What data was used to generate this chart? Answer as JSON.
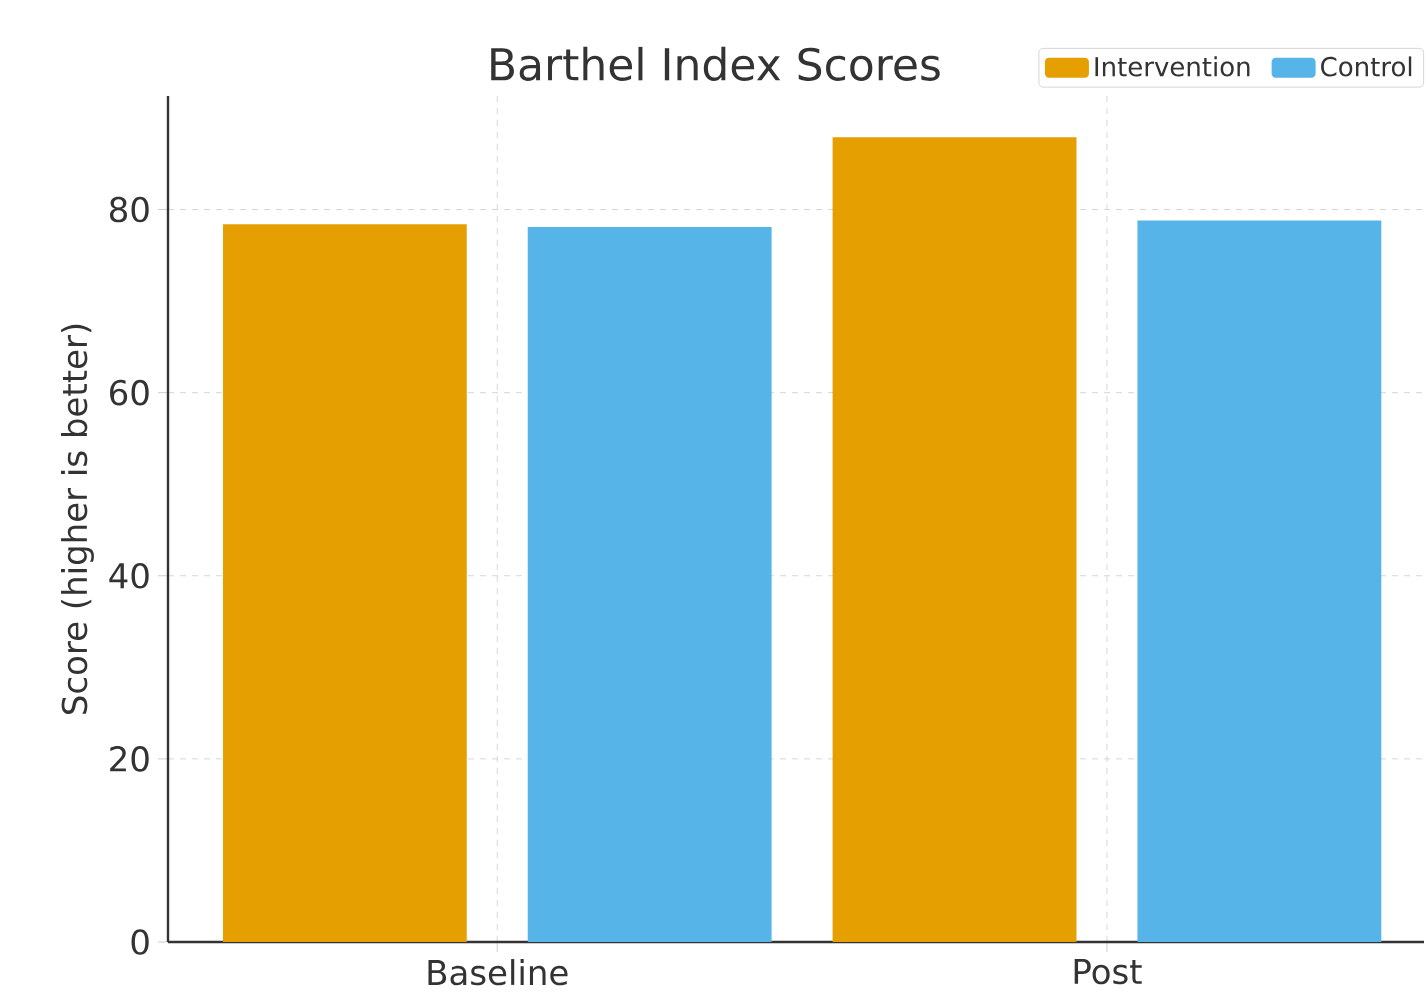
{
  "chart_data": {
    "type": "bar",
    "title": "Barthel Index Scores",
    "ylabel": "Score (higher is better)",
    "categories": [
      "Baseline",
      "Post"
    ],
    "series": [
      {
        "name": "Intervention",
        "color": "#e69f00",
        "values": [
          78.4,
          87.9
        ]
      },
      {
        "name": "Control",
        "color": "#56b4e9",
        "values": [
          78.1,
          78.8
        ]
      }
    ],
    "ylim": [
      0,
      92.4
    ],
    "yticks": [
      0,
      20,
      40,
      60,
      80
    ],
    "grid": true,
    "legend": "top right"
  }
}
